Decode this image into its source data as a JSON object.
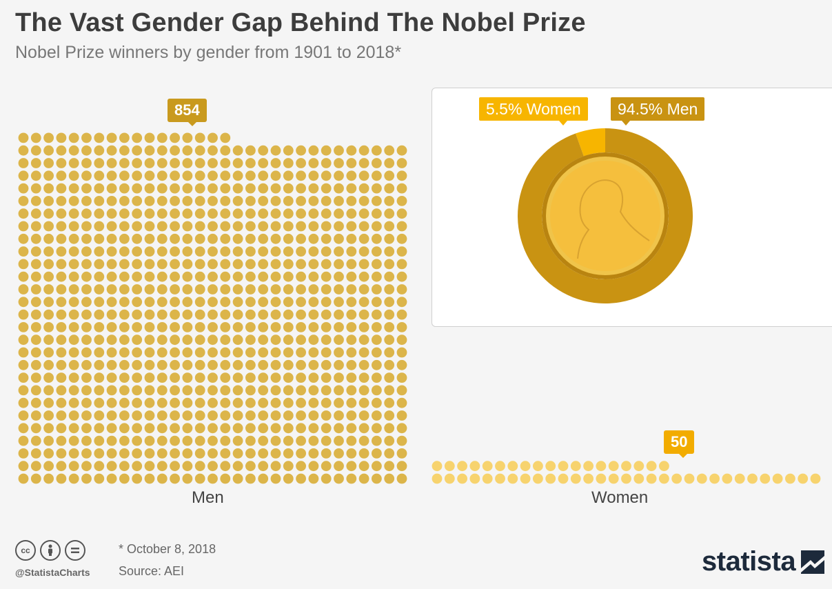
{
  "header": {
    "title": "The Vast Gender Gap Behind The Nobel Prize",
    "subtitle": "Nobel Prize winners by gender from 1901 to 2018*"
  },
  "chart_data": [
    {
      "type": "pictogram",
      "categories": [
        "Men",
        "Women"
      ],
      "values": [
        854,
        50
      ],
      "data_labels": [
        "854",
        "50"
      ],
      "colors": {
        "Men": "#dcb54a",
        "Women": "#f7d36e"
      }
    },
    {
      "type": "pie",
      "slices": [
        {
          "label": "5.5% Women",
          "name": "Women",
          "value": 5.5,
          "color": "#f7b500"
        },
        {
          "label": "94.5% Men",
          "name": "Men",
          "value": 94.5,
          "color": "#c99312"
        }
      ]
    }
  ],
  "footer": {
    "note": "* October 8, 2018",
    "source": "Source: AEI",
    "handle": "@StatistaCharts",
    "brand": "statista",
    "cc_icons": [
      "cc-icon",
      "by-icon",
      "nd-icon"
    ]
  }
}
